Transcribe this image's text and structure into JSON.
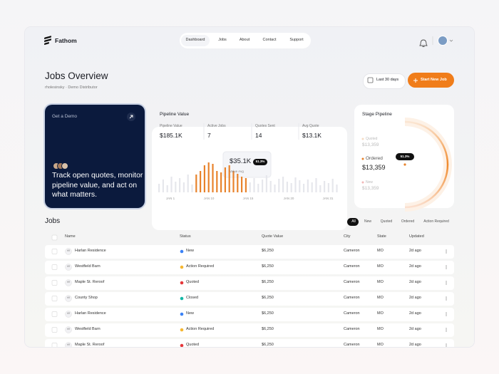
{
  "header": {
    "logo": "Fathom",
    "nav": [
      "Dashboard",
      "Jobs",
      "About",
      "Contact",
      "Support"
    ],
    "active_nav": 0
  },
  "page": {
    "title": "Jobs Overview",
    "subtitle": "rholesinsky · Demo Distributor",
    "date_range": "Last 30 days",
    "cta": "Start New Job"
  },
  "demo_card": {
    "label": "Get a Demo",
    "text": "Track open quotes, monitor pipeline value, and act on what matters."
  },
  "pipeline": {
    "title": "Pipeline Value",
    "stats": [
      {
        "label": "Pipeline Value",
        "value": "$185.1K"
      },
      {
        "label": "Active Jobs",
        "value": "7"
      },
      {
        "label": "Quotes Sent",
        "value": "14"
      },
      {
        "label": "Avg Quote",
        "value": "$13.1K"
      }
    ],
    "bars": {
      "values": [
        12,
        18,
        10,
        22,
        15,
        20,
        14,
        25,
        11,
        25,
        30,
        38,
        42,
        40,
        30,
        28,
        35,
        38,
        30,
        26,
        22,
        20,
        14,
        20,
        12,
        18,
        24,
        16,
        11,
        19,
        22,
        15,
        13,
        21,
        17,
        12,
        18,
        14,
        20,
        10,
        16,
        13,
        19,
        11
      ],
      "colors": [
        "#e6e7ec",
        "#e6e7ec",
        "#e6e7ec",
        "#e6e7ec",
        "#e6e7ec",
        "#e6e7ec",
        "#e6e7ec",
        "#e6e7ec",
        "#e6e7ec",
        "#e8832c",
        "#e8832c",
        "#e8832c",
        "#e8832c",
        "#e8832c",
        "#e8832c",
        "#e8832c",
        "#e8832c",
        "#e8832c",
        "#e8832c",
        "#e8832c",
        "#e8832c",
        "#e8832c",
        "#e6e7ec",
        "#e6e7ec",
        "#e6e7ec",
        "#e6e7ec",
        "#e6e7ec",
        "#e6e7ec",
        "#e6e7ec",
        "#e6e7ec",
        "#e6e7ec",
        "#e6e7ec",
        "#e6e7ec",
        "#e6e7ec",
        "#e6e7ec",
        "#e6e7ec",
        "#e6e7ec",
        "#e6e7ec",
        "#e6e7ec",
        "#e6e7ec",
        "#e6e7ec",
        "#e6e7ec",
        "#e6e7ec",
        "#e6e7ec"
      ]
    },
    "tooltip": {
      "value": "$35.1K",
      "badge": "51.3%",
      "label": "Value Avg"
    },
    "x_labels": [
      "JAN 1",
      "JAN 10",
      "JAN 15",
      "JAN 20",
      "JAN 31"
    ]
  },
  "stage_pipeline": {
    "title": "Stage Pipeline",
    "badge": "51.3%",
    "stages": [
      {
        "name": "Quoted",
        "value": "$13,359",
        "color": "#f6dcc4"
      },
      {
        "name": "Ordered",
        "value": "$13,359",
        "color": "#e8832c"
      },
      {
        "name": "New",
        "value": "$13,359",
        "color": "#f2b8b8"
      }
    ]
  },
  "jobs": {
    "title": "Jobs",
    "filters": [
      "All",
      "New",
      "Quoted",
      "Ordered",
      "Action Required"
    ],
    "active_filter": 0,
    "columns": [
      "Name",
      "Status",
      "Quote Value",
      "City",
      "State",
      "Updated"
    ],
    "status_colors": {
      "New": "#3b82f6",
      "Action Required": "#f5b731",
      "Quoted": "#e5383b",
      "Closed": "#14b8a6"
    },
    "rows": [
      [
        "HR",
        "Harlan Residence",
        "New",
        "$6,250",
        "Cameron",
        "MO",
        "2d ago"
      ],
      [
        "HR",
        "Westfield Barn",
        "Action Required",
        "$6,250",
        "Cameron",
        "MO",
        "2d ago"
      ],
      [
        "HR",
        "Maple St. Reroof",
        "Quoted",
        "$6,250",
        "Cameron",
        "MO",
        "2d ago"
      ],
      [
        "HR",
        "County Shop",
        "Closed",
        "$6,250",
        "Cameron",
        "MO",
        "2d ago"
      ],
      [
        "HR",
        "Harlan Residence",
        "New",
        "$6,250",
        "Cameron",
        "MO",
        "2d ago"
      ],
      [
        "HR",
        "Westfield Barn",
        "Action Required",
        "$6,250",
        "Cameron",
        "MO",
        "2d ago"
      ],
      [
        "HR",
        "Maple St. Reroof",
        "Quoted",
        "$6,250",
        "Cameron",
        "MO",
        "2d ago"
      ]
    ]
  }
}
